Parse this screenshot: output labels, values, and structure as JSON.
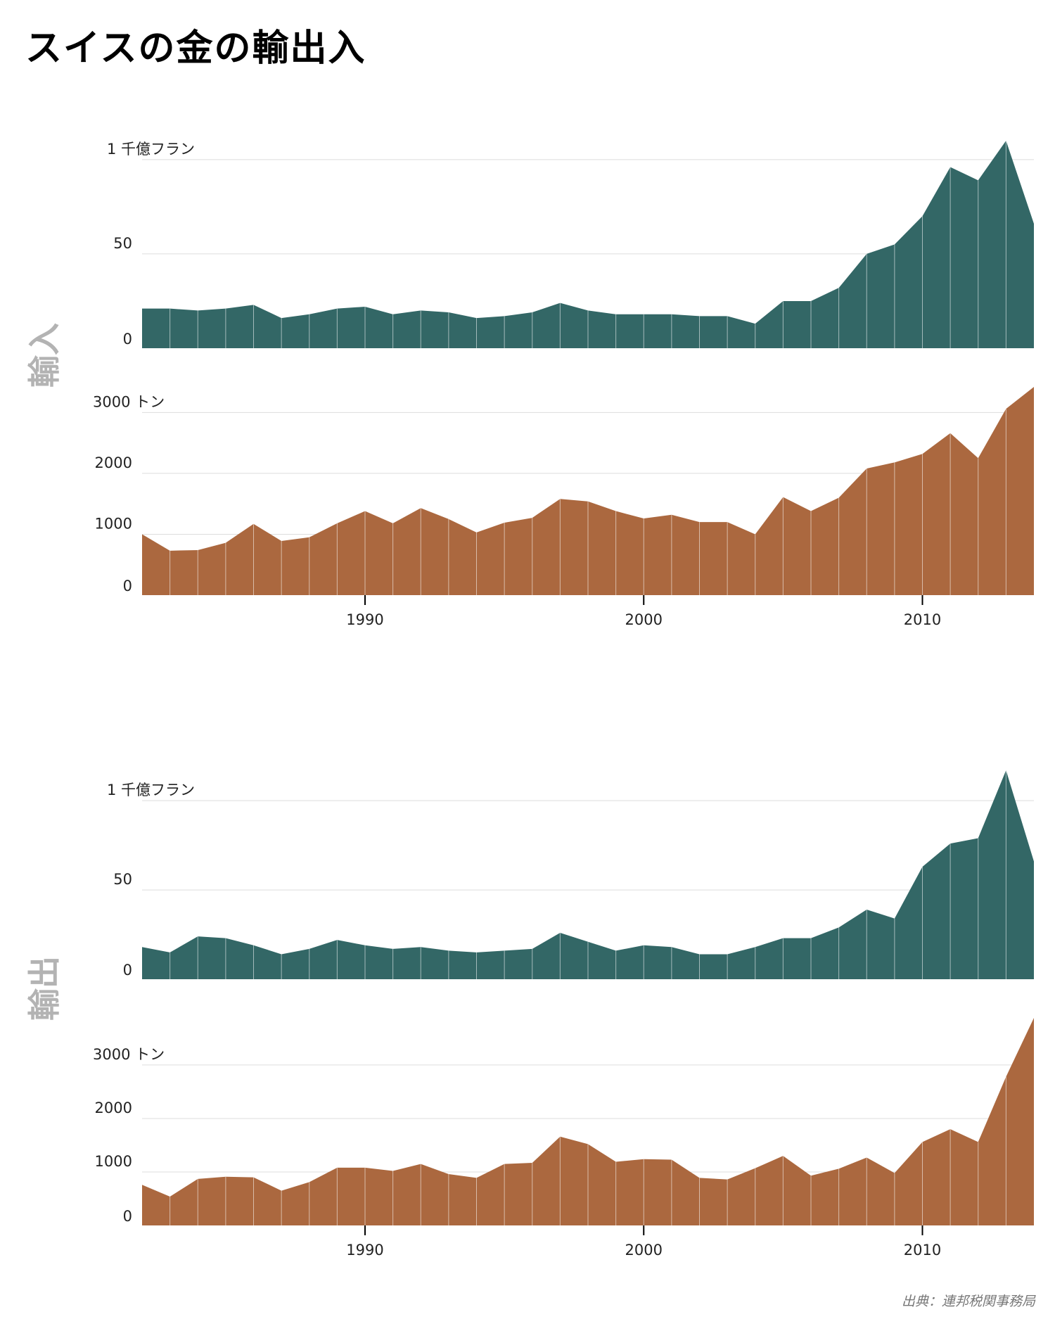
{
  "title": "スイスの金の輸出入",
  "source": "出典：連邦税関事務局",
  "colors": {
    "value": "#336766",
    "tonnes": "#ab683f",
    "grid": "#dddddd",
    "section": "#b3b3b3"
  },
  "chart_data": [
    {
      "type": "area",
      "section": "輸入",
      "measure": "value",
      "x": [
        1982,
        1983,
        1984,
        1985,
        1986,
        1987,
        1988,
        1989,
        1990,
        1991,
        1992,
        1993,
        1994,
        1995,
        1996,
        1997,
        1998,
        1999,
        2000,
        2001,
        2002,
        2003,
        2004,
        2005,
        2006,
        2007,
        2008,
        2009,
        2010,
        2011,
        2012,
        2013,
        2014
      ],
      "values": [
        21,
        21,
        20,
        21,
        23,
        16,
        18,
        21,
        22,
        18,
        20,
        19,
        16,
        17,
        19,
        24,
        20,
        18,
        18,
        18,
        17,
        17,
        13,
        25,
        25,
        32,
        50,
        55,
        70,
        96,
        89,
        110,
        66
      ],
      "yticks": [
        0,
        50,
        100
      ],
      "ytick_labels": [
        "0",
        "50",
        "1 千億フラン"
      ],
      "ylim": [
        0,
        110
      ],
      "xticks": [],
      "xtick_labels": []
    },
    {
      "type": "area",
      "section": "輸入",
      "measure": "tonnes",
      "x": [
        1982,
        1983,
        1984,
        1985,
        1986,
        1987,
        1988,
        1989,
        1990,
        1991,
        1992,
        1993,
        1994,
        1995,
        1996,
        1997,
        1998,
        1999,
        2000,
        2001,
        2002,
        2003,
        2004,
        2005,
        2006,
        2007,
        2008,
        2009,
        2010,
        2011,
        2012,
        2013,
        2014
      ],
      "values": [
        1000,
        730,
        740,
        860,
        1170,
        890,
        950,
        1180,
        1380,
        1180,
        1430,
        1250,
        1030,
        1190,
        1270,
        1580,
        1540,
        1380,
        1260,
        1320,
        1200,
        1200,
        1000,
        1610,
        1380,
        1600,
        2080,
        2180,
        2320,
        2660,
        2250,
        3060,
        3420
      ],
      "yticks": [
        0,
        1000,
        2000,
        3000
      ],
      "ytick_labels": [
        "0",
        "1000",
        "2000",
        "3000 トン"
      ],
      "ylim": [
        0,
        3420
      ],
      "xticks": [
        1990,
        2000,
        2010
      ],
      "xtick_labels": [
        "1990",
        "2000",
        "2010"
      ]
    },
    {
      "type": "area",
      "section": "輸出",
      "measure": "value",
      "x": [
        1982,
        1983,
        1984,
        1985,
        1986,
        1987,
        1988,
        1989,
        1990,
        1991,
        1992,
        1993,
        1994,
        1995,
        1996,
        1997,
        1998,
        1999,
        2000,
        2001,
        2002,
        2003,
        2004,
        2005,
        2006,
        2007,
        2008,
        2009,
        2010,
        2011,
        2012,
        2013,
        2014
      ],
      "values": [
        18,
        15,
        24,
        23,
        19,
        14,
        17,
        22,
        19,
        17,
        18,
        16,
        15,
        16,
        17,
        26,
        21,
        16,
        19,
        18,
        14,
        14,
        18,
        23,
        23,
        29,
        39,
        34,
        63,
        76,
        79,
        117,
        66
      ],
      "yticks": [
        0,
        50,
        100
      ],
      "ytick_labels": [
        "0",
        "50",
        "1 千億フラン"
      ],
      "ylim": [
        0,
        117
      ],
      "xticks": [],
      "xtick_labels": []
    },
    {
      "type": "area",
      "section": "輸出",
      "measure": "tonnes",
      "x": [
        1982,
        1983,
        1984,
        1985,
        1986,
        1987,
        1988,
        1989,
        1990,
        1991,
        1992,
        1993,
        1994,
        1995,
        1996,
        1997,
        1998,
        1999,
        2000,
        2001,
        2002,
        2003,
        2004,
        2005,
        2006,
        2007,
        2008,
        2009,
        2010,
        2011,
        2012,
        2013,
        2014
      ],
      "values": [
        760,
        540,
        870,
        910,
        900,
        650,
        810,
        1080,
        1080,
        1020,
        1150,
        960,
        890,
        1150,
        1170,
        1660,
        1520,
        1190,
        1240,
        1230,
        890,
        860,
        1070,
        1300,
        930,
        1060,
        1270,
        980,
        1560,
        1800,
        1560,
        2780,
        3880
      ],
      "yticks": [
        0,
        1000,
        2000,
        3000
      ],
      "ytick_labels": [
        "0",
        "1000",
        "2000",
        "3000 トン"
      ],
      "ylim": [
        0,
        3880
      ],
      "xticks": [
        1990,
        2000,
        2010
      ],
      "xtick_labels": [
        "1990",
        "2000",
        "2010"
      ]
    }
  ]
}
